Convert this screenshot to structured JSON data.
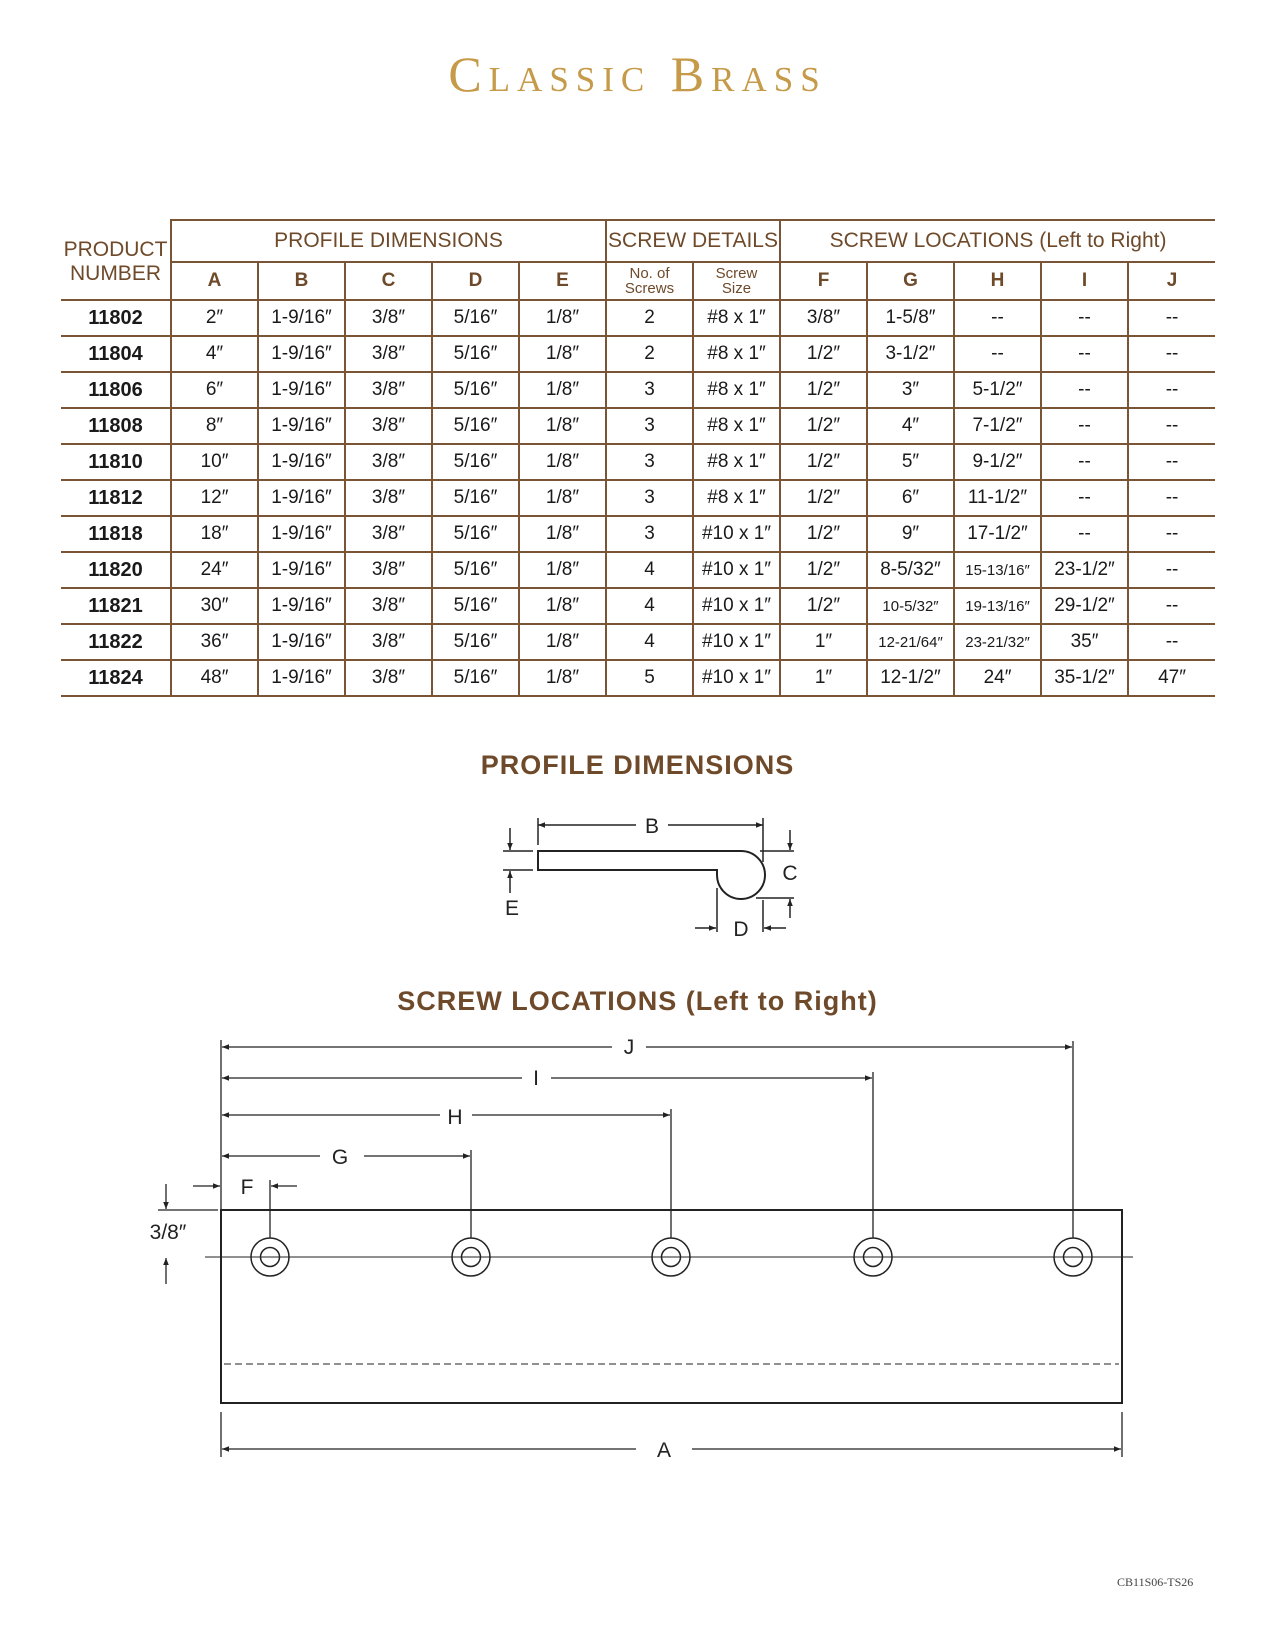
{
  "title": "Classic Brass",
  "table": {
    "product_header": "PRODUCT\nNUMBER",
    "groups": [
      "PROFILE DIMENSIONS",
      "SCREW DETAILS",
      "SCREW LOCATIONS (Left to Right)"
    ],
    "columns": [
      "A",
      "B",
      "C",
      "D",
      "E",
      "No. of\nScrews",
      "Screw\nSize",
      "F",
      "G",
      "H",
      "I",
      "J"
    ],
    "rows": [
      [
        "11802",
        "2″",
        "1-9/16″",
        "3/8″",
        "5/16″",
        "1/8″",
        "2",
        "#8 x 1″",
        "3/8″",
        "1-5/8″",
        "--",
        "--",
        "--"
      ],
      [
        "11804",
        "4″",
        "1-9/16″",
        "3/8″",
        "5/16″",
        "1/8″",
        "2",
        "#8 x 1″",
        "1/2″",
        "3-1/2″",
        "--",
        "--",
        "--"
      ],
      [
        "11806",
        "6″",
        "1-9/16″",
        "3/8″",
        "5/16″",
        "1/8″",
        "3",
        "#8 x 1″",
        "1/2″",
        "3″",
        "5-1/2″",
        "--",
        "--"
      ],
      [
        "11808",
        "8″",
        "1-9/16″",
        "3/8″",
        "5/16″",
        "1/8″",
        "3",
        "#8 x 1″",
        "1/2″",
        "4″",
        "7-1/2″",
        "--",
        "--"
      ],
      [
        "11810",
        "10″",
        "1-9/16″",
        "3/8″",
        "5/16″",
        "1/8″",
        "3",
        "#8 x 1″",
        "1/2″",
        "5″",
        "9-1/2″",
        "--",
        "--"
      ],
      [
        "11812",
        "12″",
        "1-9/16″",
        "3/8″",
        "5/16″",
        "1/8″",
        "3",
        "#8 x 1″",
        "1/2″",
        "6″",
        "11-1/2″",
        "--",
        "--"
      ],
      [
        "11818",
        "18″",
        "1-9/16″",
        "3/8″",
        "5/16″",
        "1/8″",
        "3",
        "#10 x 1″",
        "1/2″",
        "9″",
        "17-1/2″",
        "--",
        "--"
      ],
      [
        "11820",
        "24″",
        "1-9/16″",
        "3/8″",
        "5/16″",
        "1/8″",
        "4",
        "#10 x 1″",
        "1/2″",
        "8-5/32″",
        "15-13/16″",
        "23-1/2″",
        "--"
      ],
      [
        "11821",
        "30″",
        "1-9/16″",
        "3/8″",
        "5/16″",
        "1/8″",
        "4",
        "#10 x 1″",
        "1/2″",
        "10-5/32″",
        "19-13/16″",
        "29-1/2″",
        "--"
      ],
      [
        "11822",
        "36″",
        "1-9/16″",
        "3/8″",
        "5/16″",
        "1/8″",
        "4",
        "#10 x 1″",
        "1″",
        "12-21/64″",
        "23-21/32″",
        "35″",
        "--"
      ],
      [
        "11824",
        "48″",
        "1-9/16″",
        "3/8″",
        "5/16″",
        "1/8″",
        "5",
        "#10 x 1″",
        "1″",
        "12-1/2″",
        "24″",
        "35-1/2″",
        "47″"
      ]
    ]
  },
  "profile_diagram": {
    "heading": "PROFILE DIMENSIONS",
    "labels": {
      "B": "B",
      "C": "C",
      "D": "D",
      "E": "E"
    }
  },
  "screw_diagram": {
    "heading": "SCREW LOCATIONS (Left to Right)",
    "labels": {
      "J": "J",
      "I": "I",
      "H": "H",
      "G": "G",
      "F": "F",
      "A": "A",
      "edge": "3/8″"
    }
  },
  "footer_code": "CB11S06-TS26",
  "colors": {
    "brand_gold": "#c59a48",
    "brown": "#6e4a2a",
    "rule": "#7a5535"
  }
}
